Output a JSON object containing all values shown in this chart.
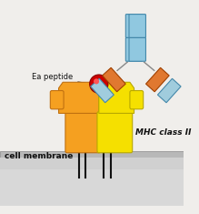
{
  "bg_color": "#f0eeeb",
  "cell_membrane_top_color": "#b8b8b8",
  "cell_membrane_bottom_color": "#d0d0d0",
  "mhc_alpha_color": "#f5a020",
  "mhc_alpha_edge": "#c07010",
  "mhc_beta_color": "#f5e000",
  "mhc_beta_edge": "#b8a800",
  "stem_color": "#111111",
  "ea_peptide_color": "#cc0000",
  "ea_peptide_edge": "#880000",
  "ab_fc_color": "#90c8e0",
  "ab_fc_edge": "#4488aa",
  "ab_fab_heavy_color": "#e07830",
  "ab_fab_heavy_edge": "#a04000",
  "ab_fab_light_color": "#a0ccdd",
  "ab_fab_light_edge": "#4488aa",
  "label_ea": "Ea peptide",
  "label_mhc": "MHC class II",
  "label_membrane": "cell membrane",
  "font_color": "#111111"
}
